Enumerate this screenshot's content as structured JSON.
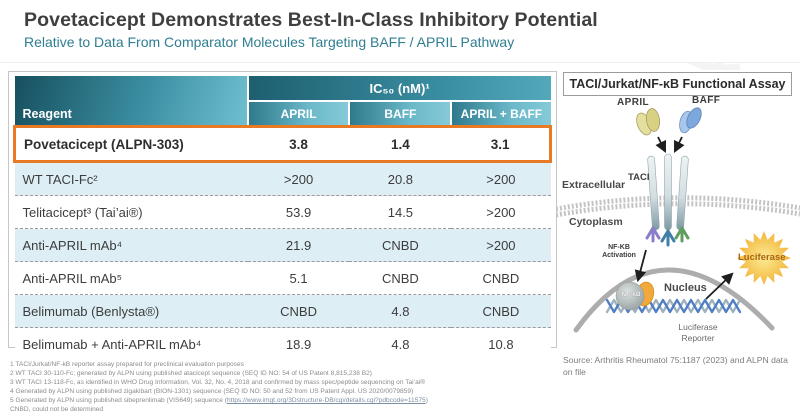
{
  "header": {
    "title": "Povetacicept Demonstrates Best-In-Class Inhibitory Potential",
    "subtitle": "Relative to Data From Comparator Molecules Targeting BAFF / APRIL Pathway"
  },
  "table": {
    "reagent_header": "Reagent",
    "ic50_header": "IC₅₀ (nM)¹",
    "columns": [
      "APRIL",
      "BAFF",
      "APRIL + BAFF"
    ],
    "rows": [
      {
        "reagent": "Povetacicept (ALPN-303)",
        "april": "3.8",
        "baff": "1.4",
        "april_baff": "3.1"
      },
      {
        "reagent": "WT TACI-Fc²",
        "april": ">200",
        "baff": "20.8",
        "april_baff": ">200"
      },
      {
        "reagent": "Telitacicept³ (Tai’ai®)",
        "april": "53.9",
        "baff": "14.5",
        "april_baff": ">200"
      },
      {
        "reagent": "Anti-APRIL mAb⁴",
        "april": "21.9",
        "baff": "CNBD",
        "april_baff": ">200"
      },
      {
        "reagent": "Anti-APRIL mAb⁵",
        "april": "5.1",
        "baff": "CNBD",
        "april_baff": "CNBD"
      },
      {
        "reagent": "Belimumab (Benlysta®)",
        "april": "CNBD",
        "baff": "4.8",
        "april_baff": "CNBD"
      },
      {
        "reagent": "Belimumab + Anti-APRIL mAb⁴",
        "april": "18.9",
        "baff": "4.8",
        "april_baff": "10.8"
      }
    ],
    "highlight_color": "#E87A25",
    "header_teal_dark": "#1D5F6F",
    "header_teal_light": "#86CAD8",
    "row_blue": "#DDEEF5"
  },
  "footnotes": {
    "line1": "1 TACI/Jurkat/NF-kB reporter assay prepared for preclinical evaluation purposes",
    "line2": "2 WT TACI 30-110-Fc; generated by ALPN using published atacicept sequence (SEQ ID NO: 54 of US Patent 8,815,238 B2)",
    "line3": "3 WT TACI 13-118-Fc, as identified in WHO Drug Information, Vol. 32, No. 4, 2018 and confirmed by mass spec/peptide sequencing on Tai’ai®",
    "line4": "4 Generated by ALPN using published zigakibart (BION-1301) sequence (SEQ ID NO: 50 and 52 from US Patent Appl. US 2020/0079859)",
    "line5_prefix": "5 Generated by ALPN using published sibeprenlimab (VIS649) sequence (",
    "line5_link": "https://www.imgt.org/3Dstructure-DB/cgi/details.cgi?pdbcode=11575",
    "line5_suffix": ")",
    "cnbd": "CNBD, could not be determined"
  },
  "diagram": {
    "title": "TACI/Jurkat/NF-κB Functional Assay",
    "april_label": "APRIL",
    "baff_label": "BAFF",
    "taci_label": "TACI",
    "extracellular_label": "Extracellular",
    "cytoplasm_label": "Cytoplasm",
    "nfkb_activation_label": "NF-KB Activation",
    "nfkb_label": "NF-kB",
    "nucleus_label": "Nucleus",
    "luciferase_label": "Luciferase",
    "luciferase_reporter_label": "Luciferase Reporter",
    "april_color": "#DCD68F",
    "baff_color": "#7CA8DE",
    "luciferase_color": "#F2B63C"
  },
  "source": "Source: Arthritis Rheumatol 75:1187 (2023) and ALPN data on file"
}
